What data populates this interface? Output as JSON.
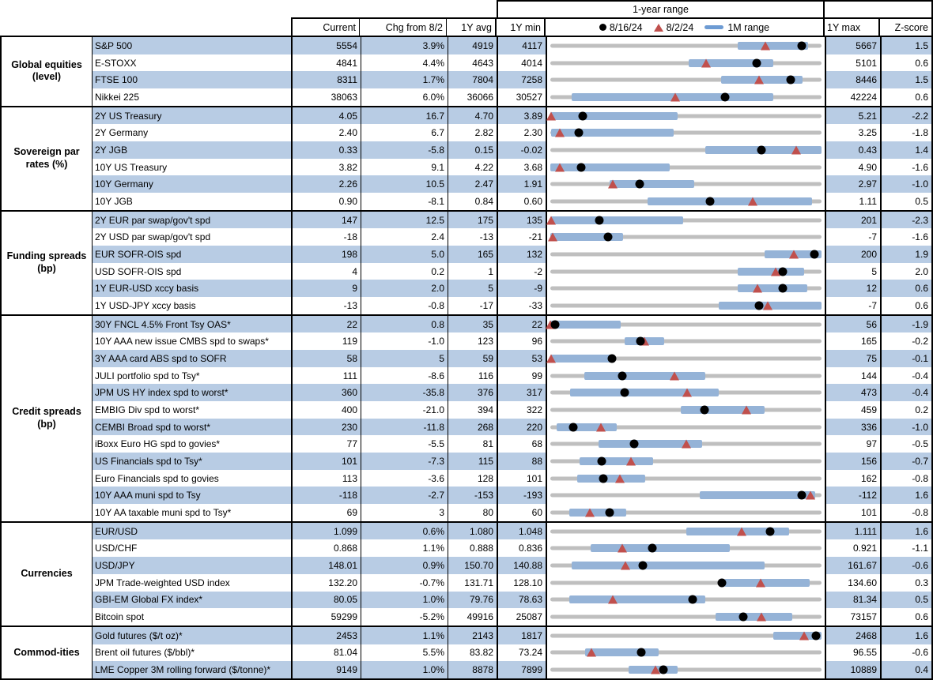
{
  "header": {
    "range_title": "1-year range",
    "col_current": "Current",
    "col_chg": "Chg from 8/2",
    "col_avg": "1Y avg",
    "col_min": "1Y min",
    "col_max": "1Y max",
    "col_z": "Z-score",
    "legend": {
      "dot_label": "8/16/24",
      "tri_label": "8/2/24",
      "bar_label": "1M range"
    }
  },
  "colors": {
    "band_blue": "#b8cce4",
    "range_bar_blue": "#95b3d7",
    "track_gray": "#bfbfbf",
    "dot_black": "#000000",
    "triangle_red": "#c0504d"
  },
  "chart_data": {
    "type": "table",
    "title": "1-year range",
    "note": "Each row: bullet chart of 1-year range; dot = 8/16/24 level, triangle = 8/2/24 level, blue bar = 1M range. Positions are fractions of the 1Y min-max span.",
    "sections": [
      {
        "category": "Global equities\n(level)",
        "rows": [
          {
            "label": "S&P 500",
            "current": "5554",
            "chg": "3.9%",
            "avg": "4919",
            "min": "4117",
            "max": "5667",
            "z": "1.5",
            "range": {
              "bar": [
                0.69,
                0.95
              ],
              "dot": 0.927,
              "tri": 0.793
            }
          },
          {
            "label": "E-STOXX",
            "current": "4841",
            "chg": "4.4%",
            "avg": "4643",
            "min": "4014",
            "max": "5101",
            "z": "0.6",
            "range": {
              "bar": [
                0.51,
                0.82
              ],
              "dot": 0.761,
              "tri": 0.573
            }
          },
          {
            "label": "FTSE 100",
            "current": "8311",
            "chg": "1.7%",
            "avg": "7804",
            "min": "7258",
            "max": "8446",
            "z": "1.5",
            "range": {
              "bar": [
                0.63,
                0.93
              ],
              "dot": 0.886,
              "tri": 0.769
            }
          },
          {
            "label": "Nikkei 225",
            "current": "38063",
            "chg": "6.0%",
            "avg": "36066",
            "min": "30527",
            "max": "42224",
            "z": "0.6",
            "range": {
              "bar": [
                0.08,
                0.82
              ],
              "dot": 0.644,
              "tri": 0.46
            }
          }
        ]
      },
      {
        "category": "Sovereign par\nrates (%)",
        "rows": [
          {
            "label": "2Y US Treasury",
            "current": "4.05",
            "chg": "16.7",
            "avg": "4.70",
            "min": "3.89",
            "max": "5.21",
            "z": "-2.2",
            "range": {
              "bar": [
                0.0,
                0.47
              ],
              "dot": 0.121,
              "tri": 0.005
            }
          },
          {
            "label": "2Y Germany",
            "current": "2.40",
            "chg": "6.7",
            "avg": "2.82",
            "min": "2.30",
            "max": "3.25",
            "z": "-1.8",
            "range": {
              "bar": [
                0.005,
                0.455
              ],
              "dot": 0.105,
              "tri": 0.035
            }
          },
          {
            "label": "2Y JGB",
            "current": "0.33",
            "chg": "-5.8",
            "avg": "0.15",
            "min": "-0.02",
            "max": "0.43",
            "z": "1.4",
            "range": {
              "bar": [
                0.57,
                1.0
              ],
              "dot": 0.778,
              "tri": 0.907
            }
          },
          {
            "label": "10Y US Treasury",
            "current": "3.82",
            "chg": "9.1",
            "avg": "4.22",
            "min": "3.68",
            "max": "4.90",
            "z": "-1.6",
            "range": {
              "bar": [
                0.0,
                0.44
              ],
              "dot": 0.115,
              "tri": 0.035
            }
          },
          {
            "label": "10Y Germany",
            "current": "2.26",
            "chg": "10.5",
            "avg": "2.47",
            "min": "1.91",
            "max": "2.97",
            "z": "-1.0",
            "range": {
              "bar": [
                0.22,
                0.53
              ],
              "dot": 0.33,
              "tri": 0.231
            }
          },
          {
            "label": "10Y JGB",
            "current": "0.90",
            "chg": "-8.1",
            "avg": "0.84",
            "min": "0.60",
            "max": "1.11",
            "z": "0.5",
            "range": {
              "bar": [
                0.36,
                0.965
              ],
              "dot": 0.588,
              "tri": 0.747
            }
          }
        ]
      },
      {
        "category": "Funding spreads\n(bp)",
        "rows": [
          {
            "label": "2Y EUR par swap/gov't spd",
            "current": "147",
            "chg": "12.5",
            "avg": "175",
            "min": "135",
            "max": "201",
            "z": "-2.3",
            "range": {
              "bar": [
                0.0,
                0.49
              ],
              "dot": 0.182,
              "tri": 0.005
            }
          },
          {
            "label": "2Y USD par swap/gov't spd",
            "current": "-18",
            "chg": "2.4",
            "avg": "-13",
            "min": "-21",
            "max": "-7",
            "z": "-1.6",
            "range": {
              "bar": [
                0.0,
                0.27
              ],
              "dot": 0.214,
              "tri": 0.01
            }
          },
          {
            "label": "EUR SOFR-OIS spd",
            "current": "198",
            "chg": "5.0",
            "avg": "165",
            "min": "132",
            "max": "200",
            "z": "1.9",
            "range": {
              "bar": [
                0.79,
                1.0
              ],
              "dot": 0.971,
              "tri": 0.897
            }
          },
          {
            "label": "USD SOFR-OIS spd",
            "current": "4",
            "chg": "0.2",
            "avg": "1",
            "min": "-2",
            "max": "5",
            "z": "2.0",
            "range": {
              "bar": [
                0.69,
                0.935
              ],
              "dot": 0.857,
              "tri": 0.829
            }
          },
          {
            "label": "1Y EUR-USD xccy basis",
            "current": "9",
            "chg": "2.0",
            "avg": "5",
            "min": "-9",
            "max": "12",
            "z": "0.6",
            "range": {
              "bar": [
                0.69,
                0.945
              ],
              "dot": 0.857,
              "tri": 0.762
            }
          },
          {
            "label": "1Y USD-JPY xccy basis",
            "current": "-13",
            "chg": "-0.8",
            "avg": "-17",
            "min": "-33",
            "max": "-7",
            "z": "0.6",
            "range": {
              "bar": [
                0.62,
                1.0
              ],
              "dot": 0.769,
              "tri": 0.8
            }
          }
        ]
      },
      {
        "category": "Credit spreads\n(bp)",
        "rows": [
          {
            "label": "30Y FNCL 4.5% Front Tsy OAS*",
            "current": "22",
            "chg": "0.8",
            "avg": "35",
            "min": "22",
            "max": "56",
            "z": "-1.9",
            "range": {
              "bar": [
                0.0,
                0.26
              ],
              "dot": 0.02,
              "tri": 0.002
            }
          },
          {
            "label": "10Y AAA new issue CMBS spd to swaps*",
            "current": "119",
            "chg": "-1.0",
            "avg": "123",
            "min": "96",
            "max": "165",
            "z": "-0.2",
            "range": {
              "bar": [
                0.275,
                0.42
              ],
              "dot": 0.333,
              "tri": 0.348
            }
          },
          {
            "label": "3Y AAA card ABS spd to SOFR",
            "current": "58",
            "chg": "5",
            "avg": "59",
            "min": "53",
            "max": "75",
            "z": "-0.1",
            "range": {
              "bar": [
                0.0,
                0.225
              ],
              "dot": 0.227,
              "tri": 0.005
            }
          },
          {
            "label": "JULI portfolio spd to Tsy*",
            "current": "111",
            "chg": "-8.6",
            "avg": "116",
            "min": "99",
            "max": "144",
            "z": "-0.4",
            "range": {
              "bar": [
                0.125,
                0.57
              ],
              "dot": 0.267,
              "tri": 0.458
            }
          },
          {
            "label": "JPM US HY index spd to worst*",
            "current": "360",
            "chg": "-35.8",
            "avg": "376",
            "min": "317",
            "max": "473",
            "z": "-0.4",
            "range": {
              "bar": [
                0.075,
                0.62
              ],
              "dot": 0.276,
              "tri": 0.505
            }
          },
          {
            "label": "EMBIG Div spd to worst*",
            "current": "400",
            "chg": "-21.0",
            "avg": "394",
            "min": "322",
            "max": "459",
            "z": "0.2",
            "range": {
              "bar": [
                0.48,
                0.79
              ],
              "dot": 0.569,
              "tri": 0.723
            }
          },
          {
            "label": "CEMBI Broad spd to worst*",
            "current": "230",
            "chg": "-11.8",
            "avg": "268",
            "min": "220",
            "max": "336",
            "z": "-1.0",
            "range": {
              "bar": [
                0.025,
                0.245
              ],
              "dot": 0.086,
              "tri": 0.188
            }
          },
          {
            "label": "iBoxx Euro HG spd to govies*",
            "current": "77",
            "chg": "-5.5",
            "avg": "81",
            "min": "68",
            "max": "97",
            "z": "-0.5",
            "range": {
              "bar": [
                0.18,
                0.56
              ],
              "dot": 0.31,
              "tri": 0.5
            }
          },
          {
            "label": "US Financials spd to Tsy*",
            "current": "101",
            "chg": "-7.3",
            "avg": "115",
            "min": "88",
            "max": "156",
            "z": "-0.7",
            "range": {
              "bar": [
                0.11,
                0.38
              ],
              "dot": 0.191,
              "tri": 0.299
            }
          },
          {
            "label": "Euro Financials spd to govies",
            "current": "113",
            "chg": "-3.6",
            "avg": "128",
            "min": "101",
            "max": "162",
            "z": "-0.8",
            "range": {
              "bar": [
                0.1,
                0.35
              ],
              "dot": 0.197,
              "tri": 0.256
            }
          },
          {
            "label": "10Y AAA muni spd to Tsy",
            "current": "-118",
            "chg": "-2.7",
            "avg": "-153",
            "min": "-193",
            "max": "-112",
            "z": "1.6",
            "range": {
              "bar": [
                0.55,
                0.975
              ],
              "dot": 0.926,
              "tri": 0.959
            }
          },
          {
            "label": "10Y AA taxable muni spd to Tsy*",
            "current": "69",
            "chg": "3",
            "avg": "80",
            "min": "60",
            "max": "101",
            "z": "-0.8",
            "range": {
              "bar": [
                0.07,
                0.28
              ],
              "dot": 0.22,
              "tri": 0.146
            }
          }
        ]
      },
      {
        "category": "Currencies",
        "rows": [
          {
            "label": "EUR/USD",
            "current": "1.099",
            "chg": "0.6%",
            "avg": "1.080",
            "min": "1.048",
            "max": "1.111",
            "z": "1.6",
            "range": {
              "bar": [
                0.5,
                0.88
              ],
              "dot": 0.81,
              "tri": 0.705
            }
          },
          {
            "label": "USD/CHF",
            "current": "0.868",
            "chg": "1.1%",
            "avg": "0.888",
            "min": "0.836",
            "max": "0.921",
            "z": "-1.1",
            "range": {
              "bar": [
                0.15,
                0.66
              ],
              "dot": 0.376,
              "tri": 0.266
            }
          },
          {
            "label": "USD/JPY",
            "current": "148.01",
            "chg": "0.9%",
            "avg": "150.70",
            "min": "140.88",
            "max": "161.67",
            "z": "-0.6",
            "range": {
              "bar": [
                0.08,
                0.79
              ],
              "dot": 0.343,
              "tri": 0.279
            }
          },
          {
            "label": "JPM Trade-weighted USD index",
            "current": "132.20",
            "chg": "-0.7%",
            "avg": "131.71",
            "min": "128.10",
            "max": "134.60",
            "z": "0.3",
            "range": {
              "bar": [
                0.64,
                0.955
              ],
              "dot": 0.631,
              "tri": 0.774
            }
          },
          {
            "label": "GBI-EM Global FX index*",
            "current": "80.05",
            "chg": "1.0%",
            "avg": "79.76",
            "min": "78.63",
            "max": "81.34",
            "z": "0.5",
            "range": {
              "bar": [
                0.07,
                0.57
              ],
              "dot": 0.524,
              "tri": 0.232
            }
          },
          {
            "label": "Bitcoin spot",
            "current": "59299",
            "chg": "-5.2%",
            "avg": "49916",
            "min": "25087",
            "max": "73157",
            "z": "0.6",
            "range": {
              "bar": [
                0.61,
                0.89
              ],
              "dot": 0.712,
              "tri": 0.779
            }
          }
        ]
      },
      {
        "category": "Commod-ities",
        "rows": [
          {
            "label": "Gold futures ($/t oz)*",
            "current": "2453",
            "chg": "1.1%",
            "avg": "2143",
            "min": "1817",
            "max": "2468",
            "z": "1.6",
            "range": {
              "bar": [
                0.82,
                1.0
              ],
              "dot": 0.977,
              "tri": 0.936
            }
          },
          {
            "label": "Brent oil futures ($/bbl)*",
            "current": "81.04",
            "chg": "5.5%",
            "avg": "83.82",
            "min": "73.24",
            "max": "96.55",
            "z": "-0.6",
            "range": {
              "bar": [
                0.13,
                0.4
              ],
              "dot": 0.335,
              "tri": 0.154
            }
          },
          {
            "label": "LME Copper 3M rolling forward ($/tonne)*",
            "current": "9149",
            "chg": "1.0%",
            "avg": "8878",
            "min": "7899",
            "max": "10889",
            "z": "0.4",
            "range": {
              "bar": [
                0.29,
                0.47
              ],
              "dot": 0.418,
              "tri": 0.388
            }
          }
        ]
      }
    ]
  }
}
